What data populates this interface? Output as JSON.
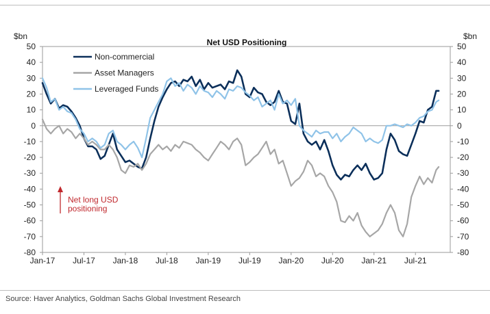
{
  "chart_data": {
    "type": "line",
    "title": "Net USD Positioning",
    "ylabel_left": "$bn",
    "ylabel_right": "$bn",
    "ylim": [
      -80,
      50
    ],
    "yticks": [
      50,
      40,
      30,
      20,
      10,
      0,
      -10,
      -20,
      -30,
      -40,
      -50,
      -60,
      -70,
      -80
    ],
    "x_range": [
      2017.0,
      2021.92
    ],
    "xticks": [
      {
        "label": "Jan-17",
        "x": 2017.0
      },
      {
        "label": "Jul-17",
        "x": 2017.5
      },
      {
        "label": "Jan-18",
        "x": 2018.0
      },
      {
        "label": "Jul-18",
        "x": 2018.5
      },
      {
        "label": "Jan-19",
        "x": 2019.0
      },
      {
        "label": "Jul-19",
        "x": 2019.5
      },
      {
        "label": "Jan-20",
        "x": 2020.0
      },
      {
        "label": "Jul-20",
        "x": 2020.5
      },
      {
        "label": "Jan-21",
        "x": 2021.0
      },
      {
        "label": "Jul-21",
        "x": 2021.5
      }
    ],
    "annotation": {
      "lines": [
        "Net long USD",
        "positioning"
      ],
      "color": "#c0282d",
      "arrow": "up"
    },
    "series": [
      {
        "name": "Non-commercial",
        "color": "#0b2f5a",
        "points": [
          [
            2017.0,
            27
          ],
          [
            2017.05,
            20
          ],
          [
            2017.1,
            14
          ],
          [
            2017.15,
            17
          ],
          [
            2017.2,
            11
          ],
          [
            2017.25,
            13
          ],
          [
            2017.3,
            12
          ],
          [
            2017.35,
            9
          ],
          [
            2017.4,
            5
          ],
          [
            2017.45,
            0
          ],
          [
            2017.5,
            -8
          ],
          [
            2017.55,
            -13
          ],
          [
            2017.6,
            -13
          ],
          [
            2017.65,
            -15
          ],
          [
            2017.7,
            -21
          ],
          [
            2017.75,
            -19
          ],
          [
            2017.8,
            -12
          ],
          [
            2017.85,
            -5
          ],
          [
            2017.9,
            -15
          ],
          [
            2017.95,
            -19
          ],
          [
            2018.0,
            -23
          ],
          [
            2018.05,
            -22
          ],
          [
            2018.1,
            -24
          ],
          [
            2018.15,
            -26
          ],
          [
            2018.2,
            -27
          ],
          [
            2018.25,
            -20
          ],
          [
            2018.3,
            -8
          ],
          [
            2018.35,
            3
          ],
          [
            2018.4,
            12
          ],
          [
            2018.45,
            18
          ],
          [
            2018.5,
            23
          ],
          [
            2018.55,
            27
          ],
          [
            2018.6,
            28
          ],
          [
            2018.65,
            25
          ],
          [
            2018.7,
            29
          ],
          [
            2018.75,
            28
          ],
          [
            2018.8,
            31
          ],
          [
            2018.85,
            25
          ],
          [
            2018.9,
            29
          ],
          [
            2018.95,
            23
          ],
          [
            2019.0,
            27
          ],
          [
            2019.05,
            24
          ],
          [
            2019.1,
            25
          ],
          [
            2019.15,
            26
          ],
          [
            2019.2,
            23
          ],
          [
            2019.25,
            28
          ],
          [
            2019.3,
            27
          ],
          [
            2019.35,
            35
          ],
          [
            2019.4,
            31
          ],
          [
            2019.45,
            20
          ],
          [
            2019.5,
            18
          ],
          [
            2019.55,
            24
          ],
          [
            2019.6,
            21
          ],
          [
            2019.65,
            20
          ],
          [
            2019.7,
            15
          ],
          [
            2019.75,
            13
          ],
          [
            2019.8,
            15
          ],
          [
            2019.85,
            22
          ],
          [
            2019.9,
            15
          ],
          [
            2019.95,
            14
          ],
          [
            2020.0,
            3
          ],
          [
            2020.05,
            1
          ],
          [
            2020.1,
            14
          ],
          [
            2020.15,
            -5
          ],
          [
            2020.2,
            -10
          ],
          [
            2020.25,
            -12
          ],
          [
            2020.3,
            -10
          ],
          [
            2020.35,
            -15
          ],
          [
            2020.4,
            -9
          ],
          [
            2020.45,
            -16
          ],
          [
            2020.5,
            -25
          ],
          [
            2020.55,
            -31
          ],
          [
            2020.6,
            -34
          ],
          [
            2020.65,
            -31
          ],
          [
            2020.7,
            -32
          ],
          [
            2020.75,
            -28
          ],
          [
            2020.8,
            -25
          ],
          [
            2020.85,
            -28
          ],
          [
            2020.9,
            -24
          ],
          [
            2020.95,
            -30
          ],
          [
            2021.0,
            -34
          ],
          [
            2021.05,
            -33
          ],
          [
            2021.1,
            -30
          ],
          [
            2021.15,
            -15
          ],
          [
            2021.2,
            -5
          ],
          [
            2021.25,
            -9
          ],
          [
            2021.3,
            -16
          ],
          [
            2021.35,
            -18
          ],
          [
            2021.4,
            -19
          ],
          [
            2021.45,
            -12
          ],
          [
            2021.5,
            -5
          ],
          [
            2021.55,
            3
          ],
          [
            2021.6,
            2
          ],
          [
            2021.65,
            10
          ],
          [
            2021.7,
            12
          ],
          [
            2021.75,
            22
          ],
          [
            2021.78,
            22
          ]
        ]
      },
      {
        "name": "Asset Managers",
        "color": "#a6a6a6",
        "points": [
          [
            2017.0,
            4
          ],
          [
            2017.05,
            -2
          ],
          [
            2017.1,
            -5
          ],
          [
            2017.15,
            -2
          ],
          [
            2017.2,
            0
          ],
          [
            2017.25,
            -5
          ],
          [
            2017.3,
            -2
          ],
          [
            2017.35,
            -4
          ],
          [
            2017.4,
            -8
          ],
          [
            2017.45,
            -5
          ],
          [
            2017.5,
            -8
          ],
          [
            2017.55,
            -12
          ],
          [
            2017.6,
            -10
          ],
          [
            2017.65,
            -12
          ],
          [
            2017.7,
            -15
          ],
          [
            2017.75,
            -15
          ],
          [
            2017.8,
            -12
          ],
          [
            2017.85,
            -15
          ],
          [
            2017.9,
            -20
          ],
          [
            2017.95,
            -28
          ],
          [
            2018.0,
            -30
          ],
          [
            2018.05,
            -25
          ],
          [
            2018.1,
            -26
          ],
          [
            2018.15,
            -24
          ],
          [
            2018.2,
            -28
          ],
          [
            2018.25,
            -24
          ],
          [
            2018.3,
            -18
          ],
          [
            2018.35,
            -15
          ],
          [
            2018.4,
            -12
          ],
          [
            2018.45,
            -15
          ],
          [
            2018.5,
            -13
          ],
          [
            2018.55,
            -16
          ],
          [
            2018.6,
            -12
          ],
          [
            2018.65,
            -14
          ],
          [
            2018.7,
            -10
          ],
          [
            2018.75,
            -11
          ],
          [
            2018.8,
            -12
          ],
          [
            2018.85,
            -15
          ],
          [
            2018.9,
            -17
          ],
          [
            2018.95,
            -20
          ],
          [
            2019.0,
            -22
          ],
          [
            2019.05,
            -18
          ],
          [
            2019.1,
            -14
          ],
          [
            2019.15,
            -10
          ],
          [
            2019.2,
            -12
          ],
          [
            2019.25,
            -15
          ],
          [
            2019.3,
            -10
          ],
          [
            2019.35,
            -8
          ],
          [
            2019.4,
            -12
          ],
          [
            2019.45,
            -25
          ],
          [
            2019.5,
            -23
          ],
          [
            2019.55,
            -20
          ],
          [
            2019.6,
            -18
          ],
          [
            2019.65,
            -14
          ],
          [
            2019.7,
            -10
          ],
          [
            2019.75,
            -18
          ],
          [
            2019.8,
            -15
          ],
          [
            2019.85,
            -24
          ],
          [
            2019.9,
            -22
          ],
          [
            2019.95,
            -30
          ],
          [
            2020.0,
            -38
          ],
          [
            2020.05,
            -35
          ],
          [
            2020.1,
            -33
          ],
          [
            2020.15,
            -29
          ],
          [
            2020.2,
            -22
          ],
          [
            2020.25,
            -25
          ],
          [
            2020.3,
            -32
          ],
          [
            2020.35,
            -30
          ],
          [
            2020.4,
            -32
          ],
          [
            2020.45,
            -38
          ],
          [
            2020.5,
            -42
          ],
          [
            2020.55,
            -48
          ],
          [
            2020.6,
            -60
          ],
          [
            2020.65,
            -61
          ],
          [
            2020.7,
            -57
          ],
          [
            2020.75,
            -60
          ],
          [
            2020.8,
            -55
          ],
          [
            2020.85,
            -63
          ],
          [
            2020.9,
            -67
          ],
          [
            2020.95,
            -70
          ],
          [
            2021.0,
            -68
          ],
          [
            2021.05,
            -66
          ],
          [
            2021.1,
            -62
          ],
          [
            2021.15,
            -55
          ],
          [
            2021.2,
            -50
          ],
          [
            2021.25,
            -55
          ],
          [
            2021.3,
            -66
          ],
          [
            2021.35,
            -70
          ],
          [
            2021.4,
            -62
          ],
          [
            2021.45,
            -45
          ],
          [
            2021.5,
            -38
          ],
          [
            2021.55,
            -32
          ],
          [
            2021.6,
            -37
          ],
          [
            2021.65,
            -33
          ],
          [
            2021.7,
            -36
          ],
          [
            2021.75,
            -28
          ],
          [
            2021.78,
            -26
          ]
        ]
      },
      {
        "name": "Leveraged Funds",
        "color": "#8fc3e8",
        "points": [
          [
            2017.0,
            30
          ],
          [
            2017.05,
            24
          ],
          [
            2017.1,
            15
          ],
          [
            2017.15,
            17
          ],
          [
            2017.2,
            10
          ],
          [
            2017.25,
            12
          ],
          [
            2017.3,
            9
          ],
          [
            2017.35,
            8
          ],
          [
            2017.4,
            4
          ],
          [
            2017.45,
            -2
          ],
          [
            2017.5,
            -5
          ],
          [
            2017.55,
            -10
          ],
          [
            2017.6,
            -8
          ],
          [
            2017.65,
            -10
          ],
          [
            2017.7,
            -14
          ],
          [
            2017.75,
            -12
          ],
          [
            2017.8,
            -5
          ],
          [
            2017.85,
            -3
          ],
          [
            2017.9,
            -10
          ],
          [
            2017.95,
            -12
          ],
          [
            2018.0,
            -15
          ],
          [
            2018.05,
            -12
          ],
          [
            2018.1,
            -10
          ],
          [
            2018.15,
            -14
          ],
          [
            2018.2,
            -20
          ],
          [
            2018.25,
            -8
          ],
          [
            2018.3,
            5
          ],
          [
            2018.35,
            10
          ],
          [
            2018.4,
            15
          ],
          [
            2018.45,
            20
          ],
          [
            2018.5,
            28
          ],
          [
            2018.55,
            30
          ],
          [
            2018.6,
            25
          ],
          [
            2018.65,
            27
          ],
          [
            2018.7,
            22
          ],
          [
            2018.75,
            26
          ],
          [
            2018.8,
            24
          ],
          [
            2018.85,
            20
          ],
          [
            2018.9,
            25
          ],
          [
            2018.95,
            22
          ],
          [
            2019.0,
            21
          ],
          [
            2019.05,
            18
          ],
          [
            2019.1,
            22
          ],
          [
            2019.15,
            20
          ],
          [
            2019.2,
            17
          ],
          [
            2019.25,
            23
          ],
          [
            2019.3,
            22
          ],
          [
            2019.35,
            25
          ],
          [
            2019.4,
            24
          ],
          [
            2019.45,
            21
          ],
          [
            2019.5,
            19
          ],
          [
            2019.55,
            16
          ],
          [
            2019.6,
            18
          ],
          [
            2019.65,
            12
          ],
          [
            2019.7,
            14
          ],
          [
            2019.75,
            16
          ],
          [
            2019.8,
            10
          ],
          [
            2019.85,
            20
          ],
          [
            2019.9,
            14
          ],
          [
            2019.95,
            16
          ],
          [
            2020.0,
            13
          ],
          [
            2020.05,
            17
          ],
          [
            2020.1,
            0
          ],
          [
            2020.15,
            -3
          ],
          [
            2020.2,
            -5
          ],
          [
            2020.25,
            -7
          ],
          [
            2020.3,
            -3
          ],
          [
            2020.35,
            -5
          ],
          [
            2020.4,
            -4
          ],
          [
            2020.45,
            -4
          ],
          [
            2020.5,
            -8
          ],
          [
            2020.55,
            -5
          ],
          [
            2020.6,
            -10
          ],
          [
            2020.65,
            -7
          ],
          [
            2020.7,
            -5
          ],
          [
            2020.75,
            -1
          ],
          [
            2020.8,
            -3
          ],
          [
            2020.85,
            -5
          ],
          [
            2020.9,
            -10
          ],
          [
            2020.95,
            -8
          ],
          [
            2021.0,
            -10
          ],
          [
            2021.05,
            -11
          ],
          [
            2021.1,
            -9
          ],
          [
            2021.15,
            0
          ],
          [
            2021.2,
            0
          ],
          [
            2021.25,
            1
          ],
          [
            2021.3,
            0
          ],
          [
            2021.35,
            -1
          ],
          [
            2021.4,
            1
          ],
          [
            2021.45,
            0
          ],
          [
            2021.5,
            2
          ],
          [
            2021.55,
            5
          ],
          [
            2021.6,
            6
          ],
          [
            2021.65,
            9
          ],
          [
            2021.7,
            10
          ],
          [
            2021.75,
            15
          ],
          [
            2021.78,
            16
          ]
        ]
      }
    ]
  },
  "source": "Source: Haver Analytics, Goldman Sachs Global Investment Research"
}
